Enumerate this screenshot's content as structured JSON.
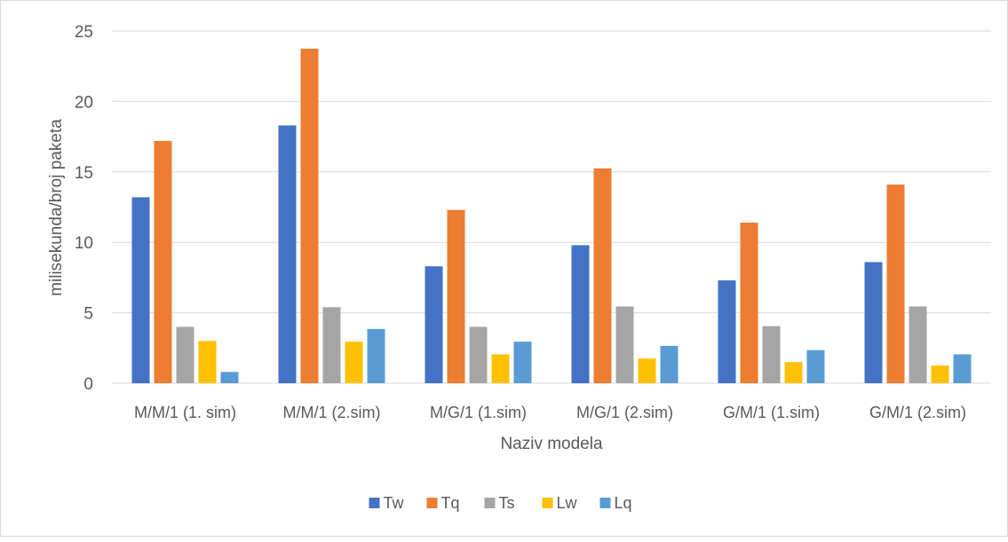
{
  "chart_data": {
    "type": "bar",
    "title": "",
    "xlabel": "Naziv modela",
    "ylabel": "milisekunda/broj paketa",
    "ylim": [
      0,
      25
    ],
    "yticks": [
      0,
      5,
      10,
      15,
      20,
      25
    ],
    "grid": true,
    "legend_position": "bottom",
    "categories": [
      "M/M/1 (1. sim)",
      "M/M/1 (2.sim)",
      "M/G/1 (1.sim)",
      "M/G/1 (2.sim)",
      "G/M/1 (1.sim)",
      "G/M/1 (2.sim)"
    ],
    "series": [
      {
        "name": "Tw",
        "color": "#4472c4",
        "values": [
          13.2,
          18.3,
          8.3,
          9.8,
          7.3,
          8.6
        ]
      },
      {
        "name": "Tq",
        "color": "#ed7d31",
        "values": [
          17.2,
          23.75,
          12.3,
          15.25,
          11.4,
          14.1
        ]
      },
      {
        "name": "Ts",
        "color": "#a5a5a5",
        "values": [
          4.0,
          5.4,
          4.0,
          5.45,
          4.05,
          5.45
        ]
      },
      {
        "name": "Lw",
        "color": "#ffc000",
        "values": [
          3.0,
          2.95,
          2.05,
          1.75,
          1.5,
          1.25
        ]
      },
      {
        "name": "Lq",
        "color": "#5b9bd5",
        "values": [
          0.8,
          3.85,
          2.95,
          2.65,
          2.35,
          2.05
        ]
      }
    ]
  }
}
